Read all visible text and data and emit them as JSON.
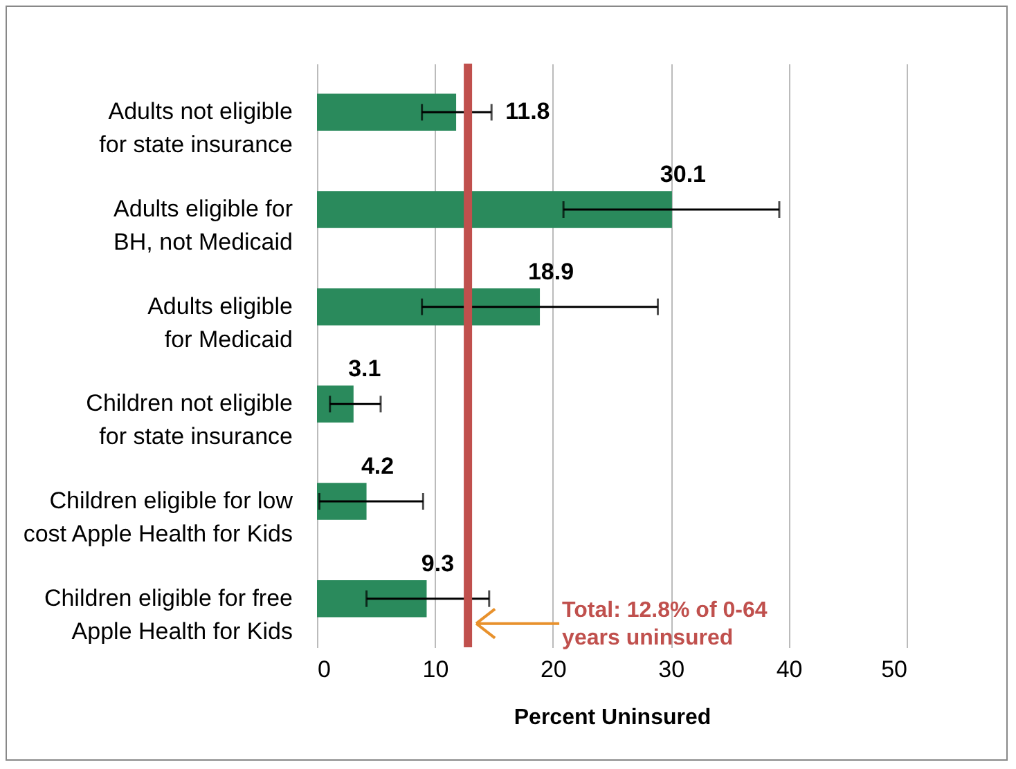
{
  "chart_data": {
    "type": "bar",
    "orientation": "horizontal",
    "categories": [
      "Adults not eligible for state insurance",
      "Adults eligible for BH, not Medicaid",
      "Adults eligible for Medicaid",
      "Children not eligible for state insurance",
      "Children eligible for low cost Apple Health for Kids",
      "Children eligible for free Apple Health for Kids"
    ],
    "values": [
      11.8,
      30.1,
      18.9,
      3.1,
      4.2,
      9.3
    ],
    "errors": [
      [
        8.9,
        14.8
      ],
      [
        20.9,
        39.2
      ],
      [
        8.9,
        28.9
      ],
      [
        1.1,
        5.4
      ],
      [
        0.2,
        9.0
      ],
      [
        4.2,
        14.6
      ]
    ],
    "color": "#2a8a5c",
    "data_labels": true,
    "xlabel": "Percent Uninsured",
    "xlim": [
      0,
      50
    ],
    "xticks": [
      0,
      10,
      20,
      30,
      40,
      50
    ],
    "grid": "x",
    "ref_lines": [
      {
        "axis": "x",
        "value": 12.8,
        "label": "Total: 12.8% of 0-64 years uninsured",
        "color": "#c0504d"
      }
    ]
  }
}
